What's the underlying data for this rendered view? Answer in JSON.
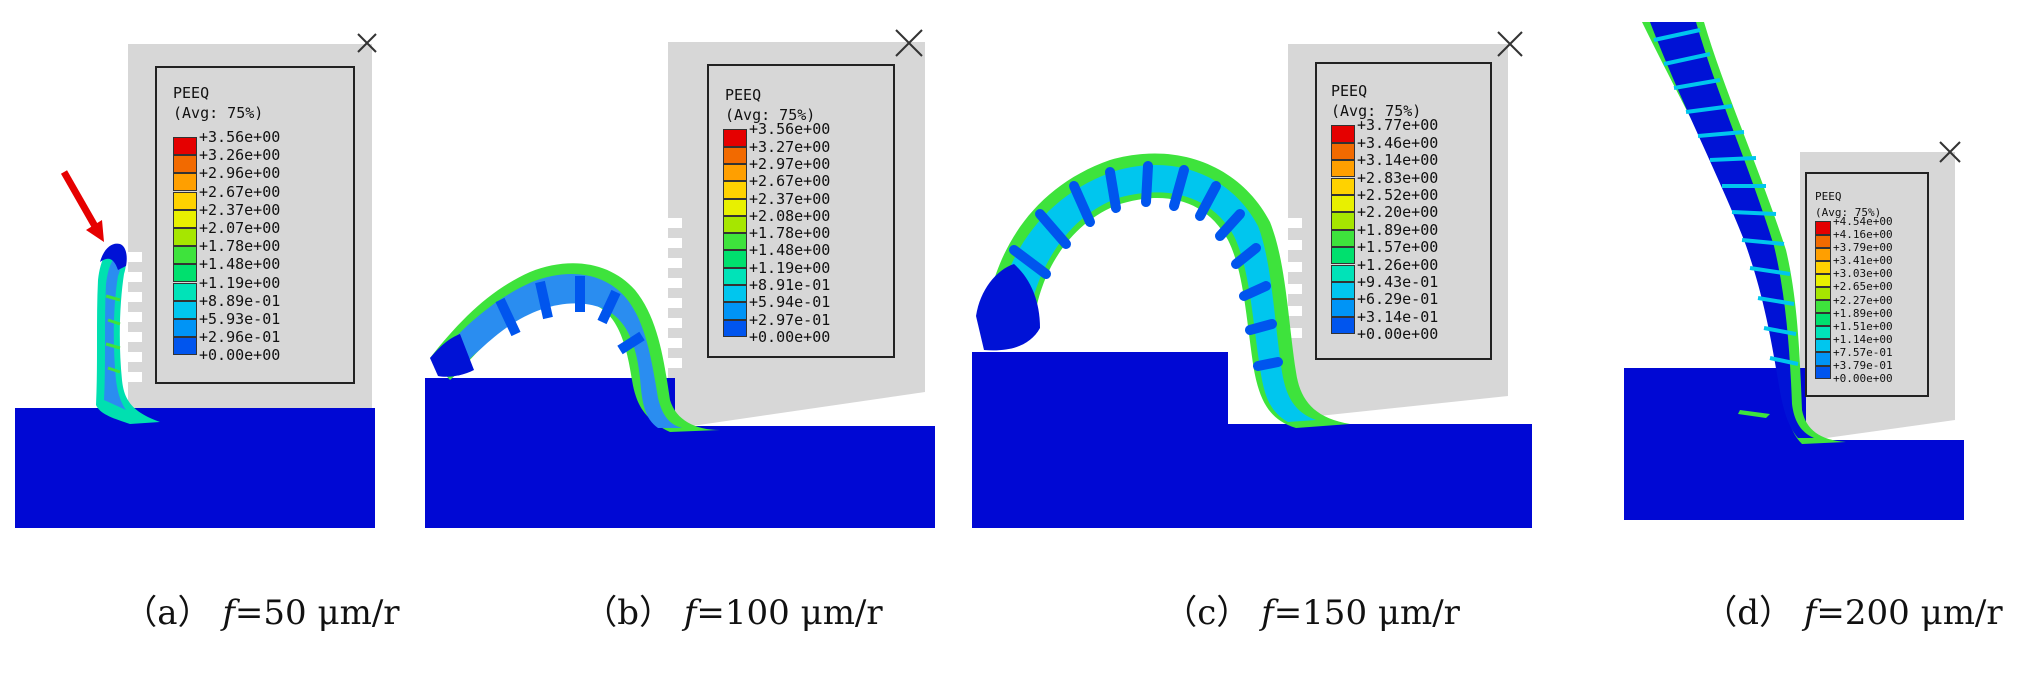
{
  "legend_common": {
    "variable": "PEEQ",
    "averaging": "(Avg: 75%)"
  },
  "colormap": [
    "#e50000",
    "#f26a00",
    "#ff9f00",
    "#ffd200",
    "#e8f000",
    "#a6e600",
    "#3ee33c",
    "#00e06e",
    "#00e3b8",
    "#00c6ee",
    "#0094f6",
    "#0055ee",
    "#0012d6"
  ],
  "substrate_color": "#0008d4",
  "housing_color": "#d7d7d7",
  "panels": [
    {
      "label": "（a）",
      "f_symbol": "f",
      "f_value": "=50 μm/r",
      "ticks": [
        "+3.56e+00",
        "+3.26e+00",
        "+2.96e+00",
        "+2.67e+00",
        "+2.37e+00",
        "+2.07e+00",
        "+1.78e+00",
        "+1.48e+00",
        "+1.19e+00",
        "+8.89e-01",
        "+5.93e-01",
        "+2.96e-01",
        "+0.00e+00"
      ]
    },
    {
      "label": "（b）",
      "f_symbol": "f",
      "f_value": "=100 μm/r",
      "ticks": [
        "+3.56e+00",
        "+3.27e+00",
        "+2.97e+00",
        "+2.67e+00",
        "+2.37e+00",
        "+2.08e+00",
        "+1.78e+00",
        "+1.48e+00",
        "+1.19e+00",
        "+8.91e-01",
        "+5.94e-01",
        "+2.97e-01",
        "+0.00e+00"
      ]
    },
    {
      "label": "（c）",
      "f_symbol": "f",
      "f_value": "=150 μm/r",
      "ticks": [
        "+3.77e+00",
        "+3.46e+00",
        "+3.14e+00",
        "+2.83e+00",
        "+2.52e+00",
        "+2.20e+00",
        "+1.89e+00",
        "+1.57e+00",
        "+1.26e+00",
        "+9.43e-01",
        "+6.29e-01",
        "+3.14e-01",
        "+0.00e+00"
      ]
    },
    {
      "label": "（d）",
      "f_symbol": "f",
      "f_value": "=200 μm/r",
      "ticks": [
        "+4.54e+00",
        "+4.16e+00",
        "+3.79e+00",
        "+3.41e+00",
        "+3.03e+00",
        "+2.65e+00",
        "+2.27e+00",
        "+1.89e+00",
        "+1.51e+00",
        "+1.14e+00",
        "+7.57e-01",
        "+3.79e-01",
        "+0.00e+00"
      ]
    }
  ]
}
